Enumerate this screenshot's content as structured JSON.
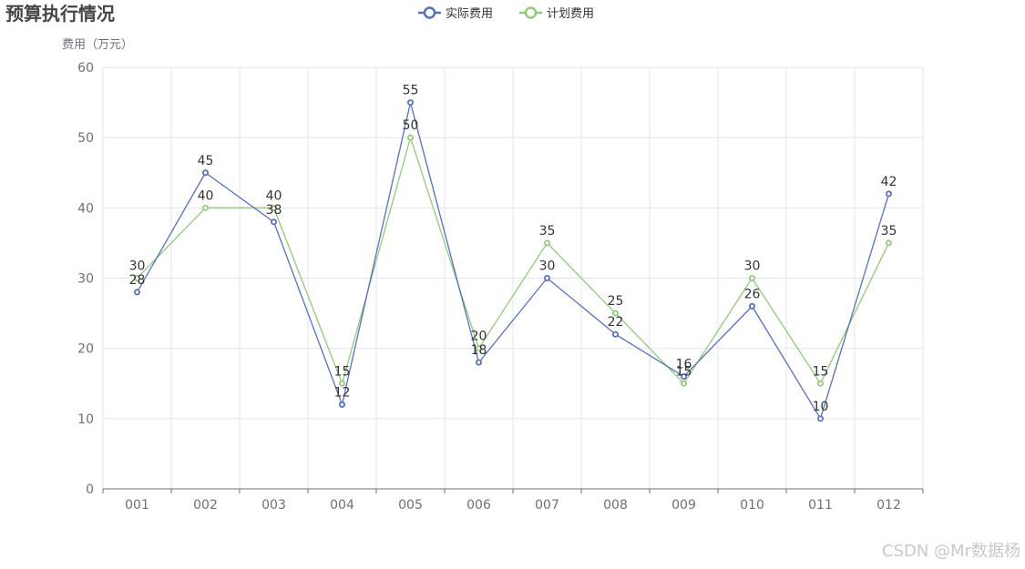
{
  "chart_data": {
    "type": "line",
    "title": "预算执行情况",
    "ylabel": "费用（万元）",
    "xlabel": "",
    "categories": [
      "001",
      "002",
      "003",
      "004",
      "005",
      "006",
      "007",
      "008",
      "009",
      "010",
      "011",
      "012"
    ],
    "ylim": [
      0,
      60
    ],
    "yticks": [
      0,
      10,
      20,
      30,
      40,
      50,
      60
    ],
    "grid": true,
    "legend_position": "top-center",
    "series": [
      {
        "name": "实际费用",
        "color": "#5470c6",
        "values": [
          28,
          45,
          38,
          12,
          55,
          18,
          30,
          22,
          16,
          26,
          10,
          42
        ]
      },
      {
        "name": "计划费用",
        "color": "#91cc75",
        "values": [
          30,
          40,
          40,
          15,
          50,
          20,
          35,
          25,
          15,
          30,
          15,
          35
        ]
      }
    ]
  },
  "watermark": "CSDN @Mr数据杨"
}
